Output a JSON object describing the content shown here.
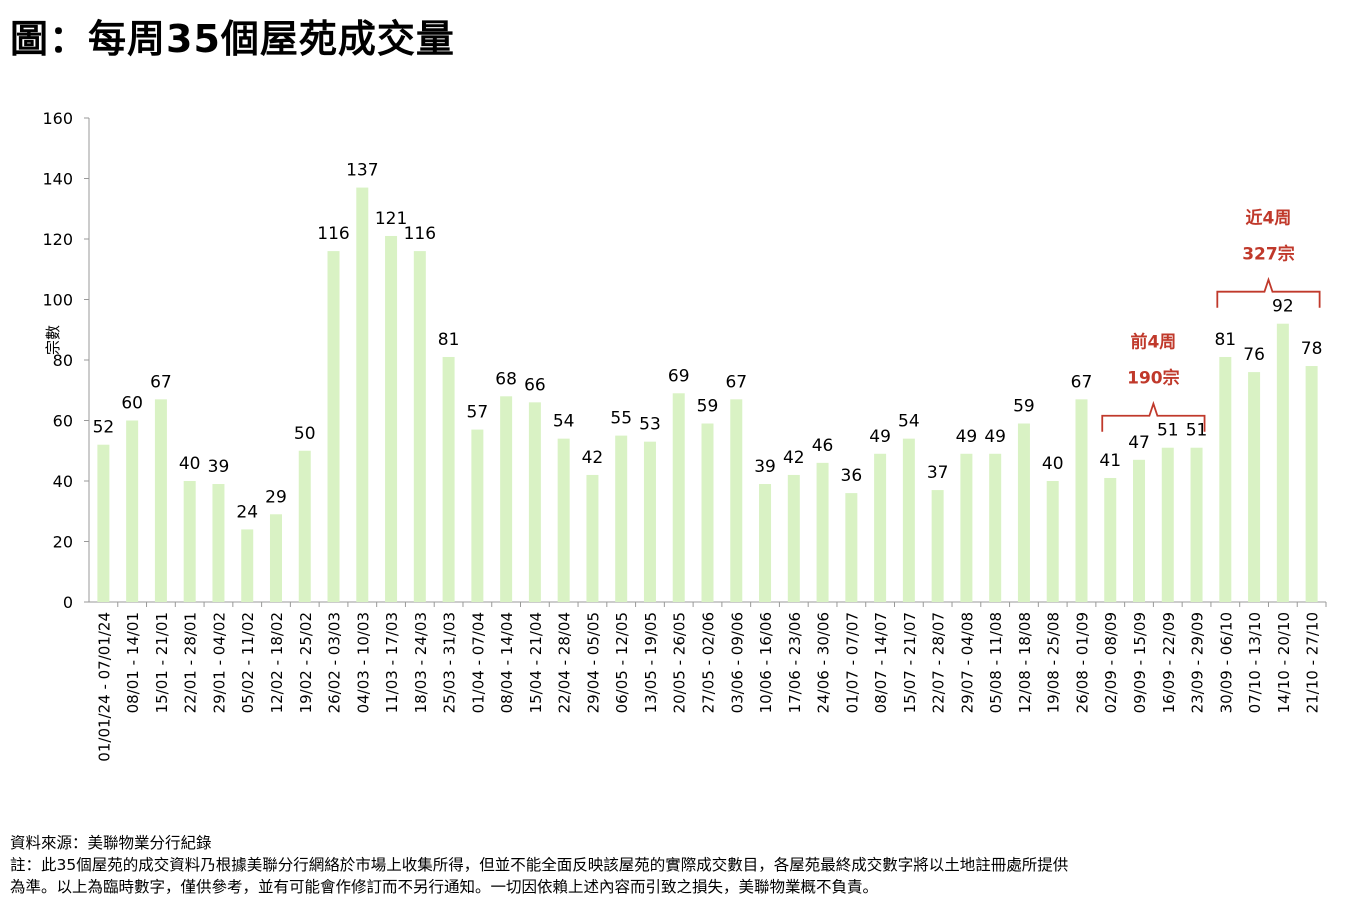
{
  "title": "圖：每周35個屋苑成交量",
  "chart_data": {
    "type": "bar",
    "ylabel": "宗數",
    "xlabel": "",
    "ylim": [
      0,
      160
    ],
    "yticks": [
      0,
      20,
      40,
      60,
      80,
      100,
      120,
      140,
      160
    ],
    "bar_color": "#d9f2c4",
    "categories": [
      "01/01/24 - 07/01/24",
      "08/01 - 14/01",
      "15/01 - 21/01",
      "22/01 - 28/01",
      "29/01 - 04/02",
      "05/02 - 11/02",
      "12/02 - 18/02",
      "19/02 - 25/02",
      "26/02 - 03/03",
      "04/03 - 10/03",
      "11/03 - 17/03",
      "18/03 - 24/03",
      "25/03 - 31/03",
      "01/04 - 07/04",
      "08/04 - 14/04",
      "15/04 - 21/04",
      "22/04 - 28/04",
      "29/04 - 05/05",
      "06/05 - 12/05",
      "13/05 - 19/05",
      "20/05 - 26/05",
      "27/05 - 02/06",
      "03/06 - 09/06",
      "10/06 - 16/06",
      "17/06 - 23/06",
      "24/06 - 30/06",
      "01/07 - 07/07",
      "08/07 - 14/07",
      "15/07 - 21/07",
      "22/07 - 28/07",
      "29/07 - 04/08",
      "05/08 - 11/08",
      "12/08 - 18/08",
      "19/08 - 25/08",
      "26/08 - 01/09",
      "02/09 - 08/09",
      "09/09 - 15/09",
      "16/09 - 22/09",
      "23/09 - 29/09",
      "30/09 - 06/10",
      "07/10 - 13/10",
      "14/10 - 20/10",
      "21/10 - 27/10"
    ],
    "values": [
      52,
      60,
      67,
      40,
      39,
      24,
      29,
      50,
      116,
      137,
      121,
      116,
      81,
      57,
      68,
      66,
      54,
      42,
      55,
      53,
      69,
      59,
      67,
      39,
      42,
      46,
      36,
      49,
      54,
      37,
      49,
      49,
      59,
      40,
      67,
      41,
      47,
      51,
      51,
      81,
      76,
      92,
      78
    ],
    "annotations": [
      {
        "line1": "前4周",
        "line2": "190宗",
        "from_index": 35,
        "to_index": 38,
        "color": "#c0392b"
      },
      {
        "line1": "近4周",
        "line2": "327宗",
        "from_index": 39,
        "to_index": 42,
        "color": "#c0392b"
      }
    ]
  },
  "footnotes": {
    "source": "資料來源：美聯物業分行紀錄",
    "note1": "註：此35個屋苑的成交資料乃根據美聯分行網絡於市場上收集所得，但並不能全面反映該屋苑的實際成交數目，各屋苑最終成交數字將以土地註冊處所提供",
    "note2": "為準。以上為臨時數字，僅供參考，並有可能會作修訂而不另行通知。一切因依賴上述內容而引致之損失，美聯物業概不負責。"
  }
}
